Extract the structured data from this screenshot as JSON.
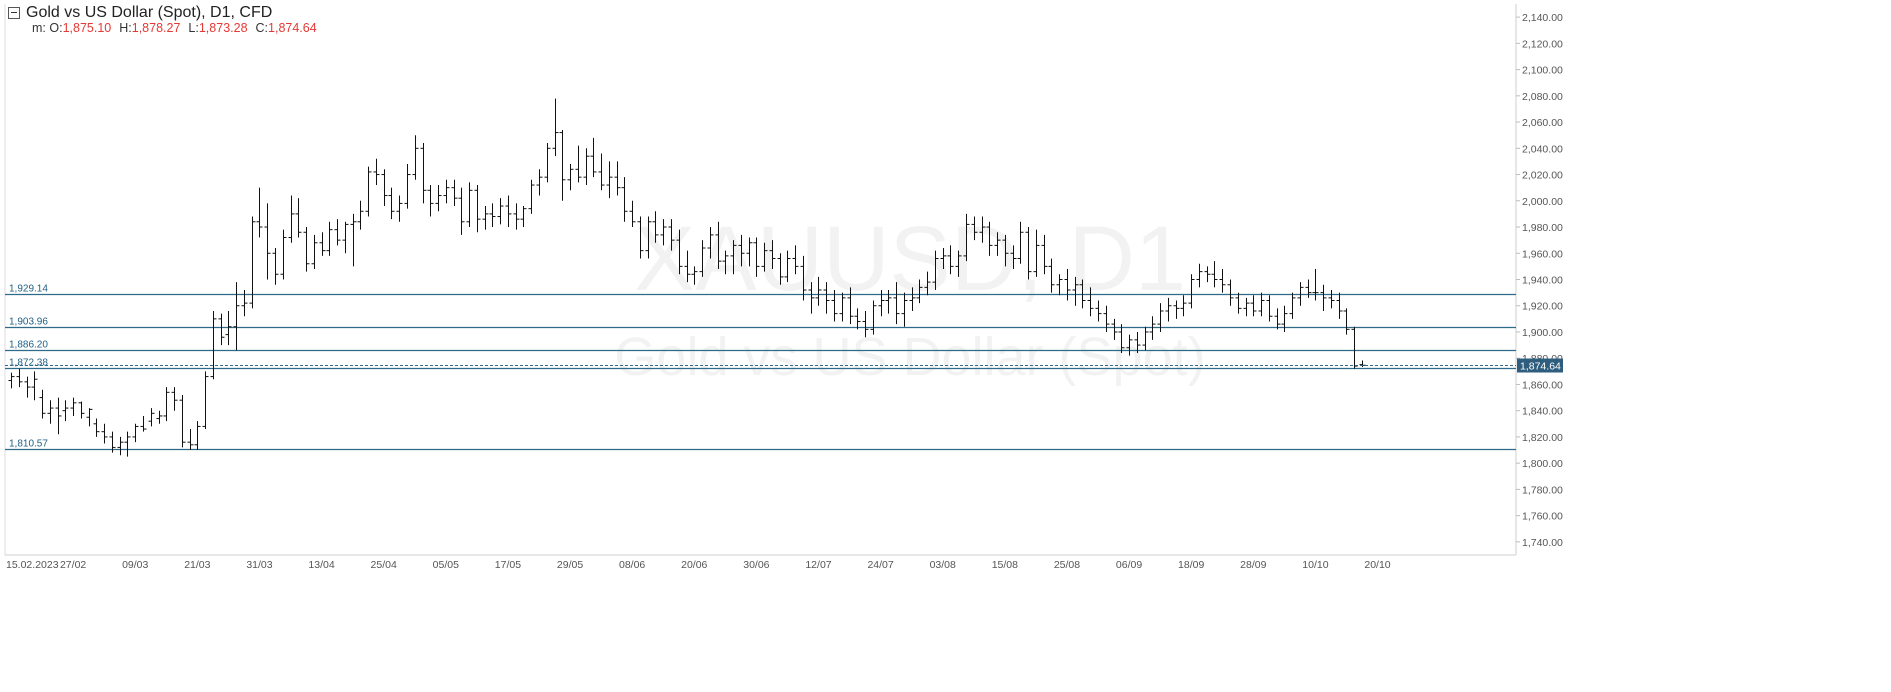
{
  "header": {
    "title": "Gold vs US Dollar (Spot),  D1,  CFD",
    "ohlc_prefix": "m:",
    "o_label": "O:",
    "o_value": "1,875.10",
    "h_label": "H:",
    "h_value": "1,878.27",
    "l_label": "L:",
    "l_value": "1,873.28",
    "c_label": "C:",
    "c_value": "1,874.64"
  },
  "watermark": {
    "symbol": "XAUUSD, D1",
    "name": "Gold vs US Dollar (Spot)"
  },
  "chart_data": {
    "type": "ohlc",
    "y_axis": {
      "min": 1730,
      "max": 2150,
      "ticks": [
        1740,
        1760,
        1780,
        1800,
        1820,
        1840,
        1860,
        1880,
        1900,
        1920,
        1940,
        1960,
        1980,
        2000,
        2020,
        2040,
        2060,
        2080,
        2100,
        2120,
        2140
      ],
      "tick_labels": [
        "1,740.00",
        "1,760.00",
        "1,780.00",
        "1,800.00",
        "1,820.00",
        "1,840.00",
        "1,860.00",
        "1,880.00",
        "1,900.00",
        "1,920.00",
        "1,940.00",
        "1,960.00",
        "1,980.00",
        "2,000.00",
        "2,020.00",
        "2,040.00",
        "2,060.00",
        "2,080.00",
        "2,100.00",
        "2,120.00",
        "2,140.00"
      ]
    },
    "x_axis": {
      "labels": [
        "15.02.2023",
        "27/02",
        "09/03",
        "21/03",
        "31/03",
        "13/04",
        "25/04",
        "05/05",
        "17/05",
        "29/05",
        "08/06",
        "20/06",
        "30/06",
        "12/07",
        "24/07",
        "03/08",
        "15/08",
        "25/08",
        "06/09",
        "18/09",
        "28/09",
        "10/10",
        "20/10"
      ]
    },
    "horizontal_lines": [
      {
        "label": "1,929.14",
        "value": 1929.14
      },
      {
        "label": "1,903.96",
        "value": 1903.96
      },
      {
        "label": "1,886.20",
        "value": 1886.2
      },
      {
        "label": "1,872.38",
        "value": 1872.38
      },
      {
        "label": "1,810.57",
        "value": 1810.57
      }
    ],
    "current_price": {
      "label": "1,874.64",
      "value": 1874.64
    },
    "bars": [
      [
        1863,
        1869,
        1857,
        1866
      ],
      [
        1866,
        1872,
        1858,
        1862
      ],
      [
        1862,
        1866,
        1850,
        1858
      ],
      [
        1858,
        1870,
        1848,
        1864
      ],
      [
        1850,
        1856,
        1834,
        1838
      ],
      [
        1838,
        1848,
        1830,
        1842
      ],
      [
        1842,
        1850,
        1822,
        1836
      ],
      [
        1840,
        1848,
        1832,
        1842
      ],
      [
        1842,
        1850,
        1836,
        1846
      ],
      [
        1846,
        1847,
        1834,
        1838
      ],
      [
        1835,
        1842,
        1828,
        1841
      ],
      [
        1830,
        1834,
        1820,
        1824
      ],
      [
        1824,
        1830,
        1815,
        1820
      ],
      [
        1820,
        1824,
        1808,
        1812
      ],
      [
        1812,
        1820,
        1806,
        1816
      ],
      [
        1816,
        1824,
        1805,
        1820
      ],
      [
        1820,
        1830,
        1816,
        1828
      ],
      [
        1828,
        1836,
        1824,
        1826
      ],
      [
        1832,
        1842,
        1828,
        1838
      ],
      [
        1834,
        1840,
        1830,
        1836
      ],
      [
        1836,
        1858,
        1832,
        1854
      ],
      [
        1854,
        1858,
        1840,
        1848
      ],
      [
        1848,
        1852,
        1812,
        1816
      ],
      [
        1816,
        1826,
        1810,
        1814
      ],
      [
        1814,
        1832,
        1810,
        1828
      ],
      [
        1828,
        1870,
        1826,
        1866
      ],
      [
        1866,
        1916,
        1864,
        1910
      ],
      [
        1910,
        1914,
        1890,
        1896
      ],
      [
        1898,
        1916,
        1890,
        1904
      ],
      [
        1904,
        1938,
        1886,
        1920
      ],
      [
        1920,
        1932,
        1912,
        1922
      ],
      [
        1922,
        1988,
        1918,
        1984
      ],
      [
        1984,
        2010,
        1972,
        1980
      ],
      [
        1980,
        1998,
        1940,
        1960
      ],
      [
        1960,
        1964,
        1936,
        1944
      ],
      [
        1944,
        1978,
        1940,
        1972
      ],
      [
        1972,
        2004,
        1968,
        1990
      ],
      [
        1990,
        2002,
        1972,
        1976
      ],
      [
        1976,
        1980,
        1946,
        1952
      ],
      [
        1952,
        1974,
        1948,
        1968
      ],
      [
        1968,
        1976,
        1958,
        1962
      ],
      [
        1962,
        1984,
        1958,
        1978
      ],
      [
        1978,
        1986,
        1966,
        1970
      ],
      [
        1970,
        1984,
        1960,
        1982
      ],
      [
        1982,
        1990,
        1950,
        1984
      ],
      [
        1984,
        2000,
        1978,
        1992
      ],
      [
        1992,
        2026,
        1988,
        2022
      ],
      [
        2022,
        2032,
        2012,
        2020
      ],
      [
        2020,
        2024,
        1996,
        2004
      ],
      [
        2004,
        2010,
        1986,
        1992
      ],
      [
        1992,
        2004,
        1984,
        1998
      ],
      [
        1998,
        2028,
        1994,
        2020
      ],
      [
        2020,
        2050,
        2016,
        2040
      ],
      [
        2040,
        2044,
        1998,
        2008
      ],
      [
        2008,
        2012,
        1988,
        1998
      ],
      [
        1998,
        2012,
        1992,
        2004
      ],
      [
        2004,
        2016,
        1998,
        2010
      ],
      [
        2010,
        2016,
        1996,
        2002
      ],
      [
        2002,
        2010,
        1974,
        1984
      ],
      [
        1984,
        2014,
        1980,
        2008
      ],
      [
        2008,
        2012,
        1976,
        1986
      ],
      [
        1986,
        1996,
        1978,
        1990
      ],
      [
        1990,
        1998,
        1980,
        1988
      ],
      [
        1988,
        2002,
        1982,
        1996
      ],
      [
        1996,
        2004,
        1980,
        1990
      ],
      [
        1990,
        1998,
        1978,
        1986
      ],
      [
        1986,
        1996,
        1980,
        1994
      ],
      [
        1994,
        2016,
        1990,
        2012
      ],
      [
        2012,
        2024,
        2004,
        2018
      ],
      [
        2018,
        2044,
        2014,
        2040
      ],
      [
        2040,
        2078,
        2034,
        2052
      ],
      [
        2052,
        2054,
        2000,
        2016
      ],
      [
        2016,
        2028,
        2008,
        2024
      ],
      [
        2024,
        2042,
        2014,
        2018
      ],
      [
        2018,
        2040,
        2012,
        2034
      ],
      [
        2034,
        2048,
        2018,
        2022
      ],
      [
        2022,
        2036,
        2008,
        2012
      ],
      [
        2012,
        2030,
        2002,
        2018
      ],
      [
        2018,
        2030,
        2004,
        2010
      ],
      [
        2010,
        2018,
        1984,
        1992
      ],
      [
        1992,
        2000,
        1980,
        1984
      ],
      [
        1984,
        1988,
        1956,
        1962
      ],
      [
        1962,
        1988,
        1956,
        1984
      ],
      [
        1984,
        1992,
        1968,
        1974
      ],
      [
        1974,
        1986,
        1966,
        1980
      ],
      [
        1980,
        1986,
        1962,
        1970
      ],
      [
        1970,
        1978,
        1944,
        1950
      ],
      [
        1950,
        1962,
        1938,
        1944
      ],
      [
        1944,
        1950,
        1936,
        1946
      ],
      [
        1946,
        1970,
        1942,
        1964
      ],
      [
        1964,
        1980,
        1956,
        1974
      ],
      [
        1974,
        1984,
        1948,
        1954
      ],
      [
        1954,
        1962,
        1944,
        1958
      ],
      [
        1958,
        1970,
        1944,
        1966
      ],
      [
        1966,
        1974,
        1950,
        1960
      ],
      [
        1960,
        1972,
        1950,
        1968
      ],
      [
        1968,
        1972,
        1942,
        1950
      ],
      [
        1950,
        1968,
        1946,
        1962
      ],
      [
        1962,
        1970,
        1948,
        1956
      ],
      [
        1956,
        1960,
        1936,
        1942
      ],
      [
        1942,
        1962,
        1938,
        1956
      ],
      [
        1956,
        1966,
        1944,
        1950
      ],
      [
        1950,
        1958,
        1924,
        1932
      ],
      [
        1932,
        1938,
        1914,
        1926
      ],
      [
        1926,
        1942,
        1920,
        1932
      ],
      [
        1932,
        1938,
        1914,
        1924
      ],
      [
        1924,
        1932,
        1908,
        1914
      ],
      [
        1914,
        1930,
        1908,
        1926
      ],
      [
        1926,
        1934,
        1906,
        1912
      ],
      [
        1912,
        1918,
        1902,
        1908
      ],
      [
        1908,
        1916,
        1896,
        1902
      ],
      [
        1902,
        1924,
        1898,
        1920
      ],
      [
        1920,
        1932,
        1912,
        1924
      ],
      [
        1924,
        1932,
        1914,
        1926
      ],
      [
        1926,
        1938,
        1906,
        1914
      ],
      [
        1914,
        1930,
        1904,
        1924
      ],
      [
        1924,
        1934,
        1916,
        1926
      ],
      [
        1926,
        1940,
        1922,
        1934
      ],
      [
        1934,
        1946,
        1928,
        1938
      ],
      [
        1938,
        1962,
        1932,
        1956
      ],
      [
        1956,
        1964,
        1948,
        1958
      ],
      [
        1958,
        1966,
        1944,
        1950
      ],
      [
        1950,
        1962,
        1942,
        1958
      ],
      [
        1958,
        1990,
        1954,
        1982
      ],
      [
        1982,
        1988,
        1970,
        1976
      ],
      [
        1976,
        1988,
        1968,
        1980
      ],
      [
        1980,
        1984,
        1958,
        1966
      ],
      [
        1966,
        1976,
        1958,
        1970
      ],
      [
        1970,
        1974,
        1950,
        1960
      ],
      [
        1960,
        1966,
        1948,
        1956
      ],
      [
        1956,
        1984,
        1952,
        1976
      ],
      [
        1976,
        1980,
        1940,
        1946
      ],
      [
        1946,
        1978,
        1942,
        1966
      ],
      [
        1966,
        1974,
        1944,
        1950
      ],
      [
        1950,
        1956,
        1930,
        1936
      ],
      [
        1936,
        1944,
        1928,
        1940
      ],
      [
        1940,
        1948,
        1924,
        1932
      ],
      [
        1932,
        1942,
        1920,
        1936
      ],
      [
        1936,
        1940,
        1918,
        1924
      ],
      [
        1924,
        1934,
        1912,
        1918
      ],
      [
        1918,
        1924,
        1908,
        1914
      ],
      [
        1914,
        1920,
        1900,
        1906
      ],
      [
        1906,
        1910,
        1894,
        1900
      ],
      [
        1900,
        1906,
        1884,
        1888
      ],
      [
        1888,
        1898,
        1882,
        1894
      ],
      [
        1894,
        1900,
        1884,
        1890
      ],
      [
        1890,
        1904,
        1886,
        1900
      ],
      [
        1900,
        1912,
        1894,
        1906
      ],
      [
        1906,
        1922,
        1900,
        1916
      ],
      [
        1916,
        1926,
        1908,
        1920
      ],
      [
        1920,
        1924,
        1910,
        1918
      ],
      [
        1918,
        1928,
        1912,
        1922
      ],
      [
        1922,
        1944,
        1918,
        1940
      ],
      [
        1940,
        1952,
        1934,
        1946
      ],
      [
        1946,
        1950,
        1938,
        1944
      ],
      [
        1944,
        1954,
        1934,
        1940
      ],
      [
        1940,
        1948,
        1930,
        1936
      ],
      [
        1936,
        1940,
        1920,
        1926
      ],
      [
        1926,
        1930,
        1914,
        1918
      ],
      [
        1918,
        1926,
        1912,
        1922
      ],
      [
        1922,
        1928,
        1912,
        1916
      ],
      [
        1916,
        1930,
        1912,
        1924
      ],
      [
        1924,
        1928,
        1908,
        1912
      ],
      [
        1912,
        1918,
        1902,
        1906
      ],
      [
        1906,
        1920,
        1900,
        1914
      ],
      [
        1914,
        1930,
        1910,
        1926
      ],
      [
        1926,
        1938,
        1920,
        1934
      ],
      [
        1934,
        1940,
        1926,
        1930
      ],
      [
        1930,
        1948,
        1924,
        1930
      ],
      [
        1930,
        1936,
        1916,
        1926
      ],
      [
        1926,
        1932,
        1918,
        1924
      ],
      [
        1924,
        1930,
        1910,
        1916
      ],
      [
        1916,
        1918,
        1898,
        1902
      ],
      [
        1902,
        1904,
        1872,
        1874
      ],
      [
        1875.1,
        1878.27,
        1873.28,
        1874.64
      ]
    ]
  },
  "colors": {
    "bars": "#111111",
    "level_line": "#2e6b8a",
    "level_label": "#1f5f85",
    "axis_text": "#555555",
    "price_tag_bg": "#2e5d7e",
    "price_tag_text": "#ffffff",
    "ohlc_value": "#e53935"
  }
}
